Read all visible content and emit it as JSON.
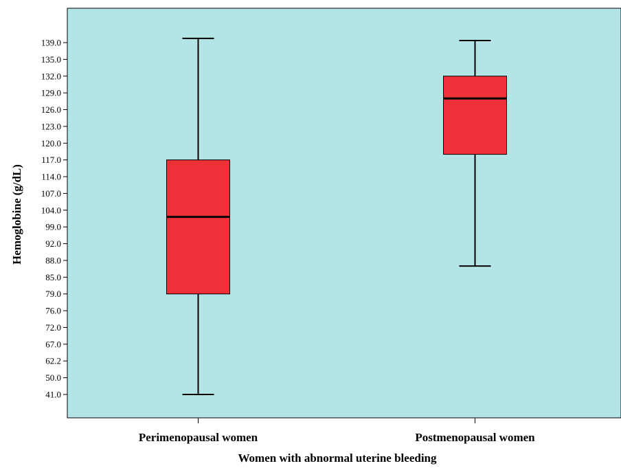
{
  "chart_data": {
    "type": "boxplot",
    "title": "",
    "xlabel": "Women with abnormal uterine bleeding",
    "ylabel": "Hemoglobine (g/dL)",
    "y_scale": "ordinal tick labels (non-linear, evenly spaced)",
    "y_ticks": [
      "41.0",
      "50.0",
      "62.2",
      "67.0",
      "72.0",
      "76.0",
      "79.0",
      "85.0",
      "88.0",
      "92.0",
      "99.0",
      "104.0",
      "107.0",
      "114.0",
      "117.0",
      "120.0",
      "123.0",
      "126.0",
      "129.0",
      "132.0",
      "135.0",
      "139.0"
    ],
    "categories": [
      "Perimenopausal women",
      "Postmenopausal women"
    ],
    "boxes": [
      {
        "category": "Perimenopausal women",
        "min": 41.0,
        "q1": 79.0,
        "median": 102.0,
        "q3": 117.0,
        "max": 140.0
      },
      {
        "category": "Postmenopausal women",
        "min": 87.0,
        "q1": 118.0,
        "median": 128.0,
        "q3": 132.0,
        "max": 139.5
      }
    ],
    "grid": false,
    "legend": "none",
    "colors": {
      "plot_background": "#b3e5e6",
      "box_fill": "#ee3039",
      "lines": "#000000"
    }
  }
}
